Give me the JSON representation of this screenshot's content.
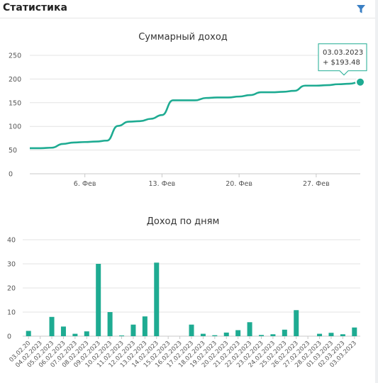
{
  "header": {
    "title": "Статистика",
    "filter_icon": "filter-icon"
  },
  "colors": {
    "series": "#1eab92",
    "grid": "#e3e3e3",
    "axis": "#c9c9c9",
    "text": "#555555"
  },
  "chart_data": [
    {
      "type": "line",
      "title": "Суммарный доход",
      "ylim": [
        0,
        250
      ],
      "yticks": [
        0,
        50,
        100,
        150,
        200,
        250
      ],
      "xlim": [
        "2023-02-01",
        "2023-03-03"
      ],
      "xticks": [
        {
          "date": "2023-02-06",
          "label": "6. Фев"
        },
        {
          "date": "2023-02-13",
          "label": "13. Фев"
        },
        {
          "date": "2023-02-20",
          "label": "20. Фев"
        },
        {
          "date": "2023-02-27",
          "label": "27. Фев"
        }
      ],
      "x": [
        "2023-02-01",
        "2023-02-02",
        "2023-02-03",
        "2023-02-04",
        "2023-02-05",
        "2023-02-06",
        "2023-02-07",
        "2023-02-08",
        "2023-02-09",
        "2023-02-10",
        "2023-02-11",
        "2023-02-12",
        "2023-02-13",
        "2023-02-14",
        "2023-02-15",
        "2023-02-16",
        "2023-02-17",
        "2023-02-18",
        "2023-02-19",
        "2023-02-20",
        "2023-02-21",
        "2023-02-22",
        "2023-02-23",
        "2023-02-24",
        "2023-02-25",
        "2023-02-26",
        "2023-02-27",
        "2023-02-28",
        "2023-03-01",
        "2023-03-02",
        "2023-03-03"
      ],
      "values": [
        54,
        54,
        55,
        63,
        66,
        67,
        68,
        70,
        101,
        110,
        111,
        116,
        124,
        155,
        155,
        155,
        160,
        161,
        161,
        163,
        166,
        172,
        172,
        173,
        175,
        186,
        186,
        187,
        189,
        190,
        193.48
      ],
      "tooltip": {
        "date": "03.03.2023",
        "value": "+ $193.48"
      },
      "grid": true
    },
    {
      "type": "bar",
      "title": "Доход по дням",
      "ylim": [
        0,
        40
      ],
      "yticks": [
        0,
        10,
        20,
        30,
        40
      ],
      "categories": [
        "03.02.2023",
        "04.02.2023",
        "05.02.2023",
        "06.02.2023",
        "07.02.2023",
        "08.02.2023",
        "09.02.2023",
        "10.02.2023",
        "11.02.2023",
        "12.02.2023",
        "13.02.2023",
        "14.02.2023",
        "15.02.2023",
        "16.02.2023",
        "17.02.2023",
        "18.02.2023",
        "19.02.2023",
        "20.02.2023",
        "21.02.2023",
        "22.02.2023",
        "23.02.2023",
        "24.02.2023",
        "25.02.2023",
        "26.02.2023",
        "27.02.2023",
        "28.02.2023",
        "01.03.2023",
        "02.03.2023",
        "03.03.2023"
      ],
      "category_labels": [
        "03.02.20",
        "04.02.2023",
        "05.02.2023",
        "06.02.2023",
        "07.02.2023",
        "08.02.2023",
        "09.02.2023",
        "10.02.2023",
        "11.02.2023",
        "12.02.2023",
        "13.02.2023",
        "14.02.2023",
        "15.02.2023",
        "16.02.2023",
        "17.02.2023",
        "18.02.2023",
        "19.02.2023",
        "20.02.2023",
        "21.02.2023",
        "22.02.2023",
        "23.02.2023",
        "24.02.2023",
        "25.02.2023",
        "26.02.2023",
        "27.02.2023",
        "28.02.2023",
        "01.03.2023",
        "02.03.2023",
        "03.03.2023"
      ],
      "values": [
        2.2,
        0,
        8,
        4,
        1,
        2,
        30,
        10,
        0.3,
        4.8,
        8.2,
        30.5,
        0,
        0,
        4.8,
        1,
        0.4,
        1.5,
        2.5,
        5.8,
        0.5,
        0.8,
        2.7,
        10.8,
        0,
        1,
        1.4,
        0.8,
        3.6
      ],
      "grid": true
    }
  ]
}
